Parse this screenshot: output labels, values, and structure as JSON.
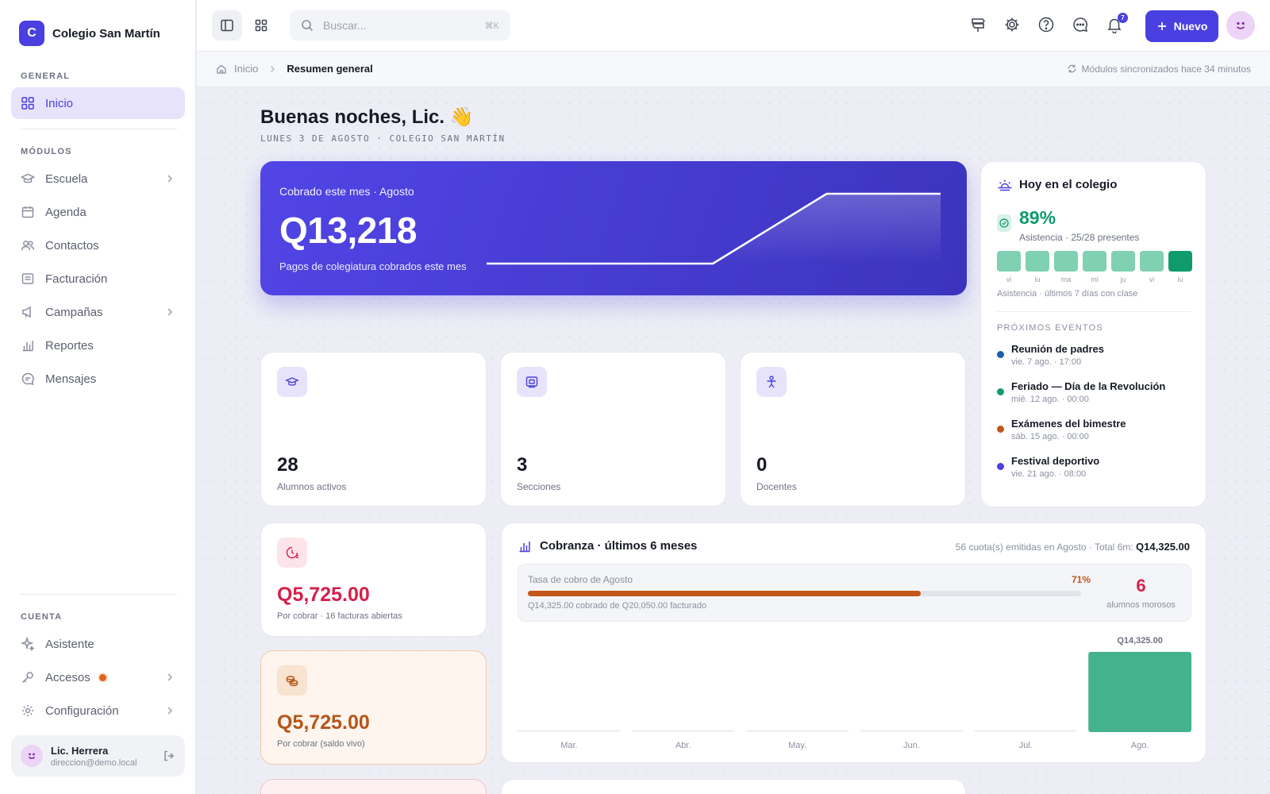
{
  "app": {
    "logo_letter": "C",
    "name": "Colegio San Martín"
  },
  "sidebar": {
    "general_label": "GENERAL",
    "modules_label": "MÓDULOS",
    "account_label": "CUENTA",
    "general_items": [
      {
        "label": "Inicio",
        "icon": "grid-icon",
        "active": true
      }
    ],
    "module_items": [
      {
        "label": "Escuela",
        "icon": "graduation-cap-icon",
        "chevron": true
      },
      {
        "label": "Agenda",
        "icon": "calendar-icon"
      },
      {
        "label": "Contactos",
        "icon": "users-icon"
      },
      {
        "label": "Facturación",
        "icon": "receipt-icon"
      },
      {
        "label": "Campañas",
        "icon": "megaphone-icon",
        "chevron": true
      },
      {
        "label": "Reportes",
        "icon": "bar-chart-icon"
      },
      {
        "label": "Mensajes",
        "icon": "message-icon"
      }
    ],
    "account_items": [
      {
        "label": "Asistente",
        "icon": "sparkle-icon"
      },
      {
        "label": "Accesos",
        "icon": "key-icon",
        "chevron": true,
        "badge": true
      },
      {
        "label": "Configuración",
        "icon": "gear-icon",
        "chevron": true
      }
    ],
    "user": {
      "name": "Lic. Herrera",
      "email": "direccion@demo.local"
    }
  },
  "topbar": {
    "search_placeholder": "Buscar...",
    "search_shortcut": "⌘K",
    "notification_count": "7",
    "new_button": "Nuevo"
  },
  "breadcrumb": {
    "home": "Inicio",
    "current": "Resumen general",
    "sync_status": "Módulos sincronizados hace 34 minutos"
  },
  "greeting": {
    "title": "Buenas noches, Lic. 👋",
    "subtitle": "LUNES 3 DE AGOSTO · COLEGIO SAN MARTÍN"
  },
  "hero": {
    "label": "Cobrado este mes · Agosto",
    "amount": "Q13,218",
    "description": "Pagos de colegiatura cobrados este mes",
    "sparkline": [
      0,
      0,
      0,
      0,
      0,
      0,
      1,
      1
    ]
  },
  "stats": [
    {
      "value": "28",
      "label": "Alumnos activos",
      "icon": "graduation-cap-icon"
    },
    {
      "value": "3",
      "label": "Secciones",
      "icon": "classroom-icon"
    },
    {
      "value": "0",
      "label": "Docentes",
      "icon": "teacher-icon"
    }
  ],
  "receivables": [
    {
      "amount": "Q5,725.00",
      "label": "Por cobrar · 16 facturas abiertas",
      "icon": "clock-money-icon",
      "color": "#d61f4c"
    },
    {
      "amount": "Q5,725.00",
      "label": "Por cobrar (saldo vivo)",
      "icon": "coins-icon",
      "color": "#b4561a"
    }
  ],
  "today": {
    "title": "Hoy en el colegio",
    "attendance_pct": "89%",
    "attendance_detail": "Asistencia · 25/28 presentes",
    "attendance_days": [
      "vi",
      "lu",
      "ma",
      "mi",
      "ju",
      "vi",
      "lu"
    ],
    "attendance_caption": "Asistencia · últimos 7 días con clase",
    "events_label": "PRÓXIMOS EVENTOS",
    "events": [
      {
        "title": "Reunión de padres",
        "when": "vie. 7 ago. · 17:00",
        "color": "#1e5fa8"
      },
      {
        "title": "Feriado — Día de la Revolución",
        "when": "mié. 12 ago. · 00:00",
        "color": "#0f9b6b"
      },
      {
        "title": "Exámenes del bimestre",
        "when": "sáb. 15 ago. · 00:00",
        "color": "#c1571b"
      },
      {
        "title": "Festival deportivo",
        "when": "vie. 21 ago. · 08:00",
        "color": "#4a3fe0"
      }
    ]
  },
  "cobranza": {
    "title": "Cobranza · últimos 6 meses",
    "summary_prefix": "56 cuota(s) emitidas en Agosto · Total 6m:",
    "summary_total": "Q14,325.00",
    "rate_label": "Tasa de cobro de Agosto",
    "rate_pct": "71%",
    "rate_value": 0.71,
    "rate_footer": "Q14,325.00 cobrado de Q20,050.00 facturado",
    "morosos_count": "6",
    "morosos_label": "alumnos morosos"
  },
  "chart_data": {
    "type": "bar",
    "categories": [
      "Mar.",
      "Abr.",
      "May.",
      "Jun.",
      "Jul.",
      "Ago."
    ],
    "values": [
      0,
      0,
      0,
      0,
      0,
      14325
    ],
    "value_labels": [
      "",
      "",
      "",
      "",
      "",
      "Q14,325.00"
    ],
    "bar_color": "#44b28c",
    "title": "",
    "xlabel": "",
    "ylabel": "",
    "ylim": [
      0,
      14325
    ]
  },
  "colors": {
    "accent": "#4a3fe0",
    "success": "#0f9b6b",
    "danger": "#d61f4c",
    "warning": "#c1571b"
  }
}
